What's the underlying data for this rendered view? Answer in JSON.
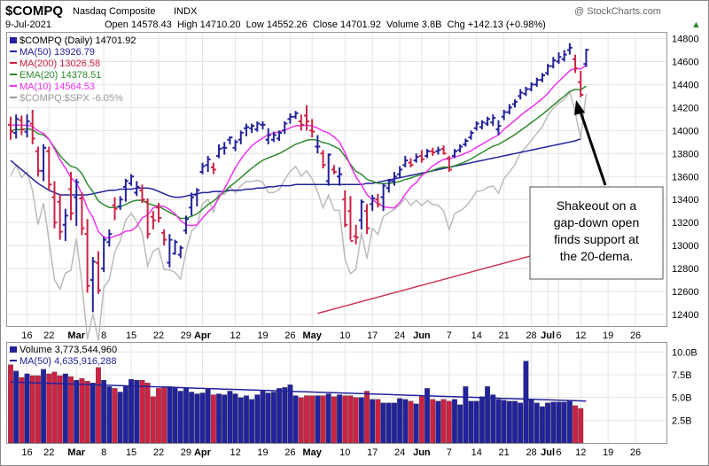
{
  "header": {
    "symbol": "$COMPQ",
    "name": "Nasdaq Composite",
    "exchange": "INDX",
    "date": "9-Jul-2021",
    "ohlc_text": "Open 14578.43  High 14710.20  Low 14552.26  Close 14701.92  Volume 3.8B  Chg +142.13 (+0.98%)",
    "watermark": "@ StockCharts.com",
    "change_arrow": "▲"
  },
  "legend_price": [
    {
      "text": "$COMPQ (Daily) 14701.92",
      "color": "#000000"
    },
    {
      "text": "MA(50) 13926.79",
      "color": "#22229c"
    },
    {
      "text": "MA(200) 13026.58",
      "color": "#cc2244"
    },
    {
      "text": "EMA(20) 14378.51",
      "color": "#2e8a2e"
    },
    {
      "text": "MA(10) 14564.53",
      "color": "#ee33ee"
    },
    {
      "text": "$COMPQ:$SPX -6.05%",
      "color": "#999999"
    }
  ],
  "legend_volume": [
    {
      "text": "Volume 3,773,544,960",
      "color": "#000000"
    },
    {
      "text": "MA(50) 4,635,916,288",
      "color": "#22229c"
    }
  ],
  "annotation": {
    "lines": [
      "Shakeout on a",
      "gap-down open",
      "finds support at",
      "the 20-dema."
    ]
  },
  "colors": {
    "up": "#22229c",
    "down": "#cc2244",
    "ma50": "#22229c",
    "ma200": "#cc3355",
    "ema20": "#2e8a2e",
    "ma10": "#ee33ee",
    "rel": "#bbbbbb",
    "grid": "#e4e4e4"
  },
  "chart_data": {
    "type": "line",
    "price_axis": {
      "min": 12300,
      "max": 14850,
      "ticks": [
        12400,
        12600,
        12800,
        13000,
        13200,
        13400,
        13600,
        13800,
        14000,
        14200,
        14400,
        14600,
        14800
      ]
    },
    "volume_axis": {
      "min": 0,
      "max": 11000000000,
      "ticks": [
        2500000000,
        5000000000,
        7500000000,
        10000000000
      ],
      "tick_labels": [
        "2.5B",
        "5.0B",
        "7.5B",
        "10.0B"
      ]
    },
    "x_labels": [
      {
        "i": 3,
        "label": "16",
        "bold": false
      },
      {
        "i": 7,
        "label": "22",
        "bold": false
      },
      {
        "i": 12,
        "label": "Mar",
        "bold": true
      },
      {
        "i": 17,
        "label": "8",
        "bold": false
      },
      {
        "i": 22,
        "label": "15",
        "bold": false
      },
      {
        "i": 27,
        "label": "22",
        "bold": false
      },
      {
        "i": 32,
        "label": "29",
        "bold": false
      },
      {
        "i": 35,
        "label": "Apr",
        "bold": true
      },
      {
        "i": 41,
        "label": "12",
        "bold": false
      },
      {
        "i": 46,
        "label": "19",
        "bold": false
      },
      {
        "i": 51,
        "label": "26",
        "bold": false
      },
      {
        "i": 55,
        "label": "May",
        "bold": true
      },
      {
        "i": 61,
        "label": "10",
        "bold": false
      },
      {
        "i": 66,
        "label": "17",
        "bold": false
      },
      {
        "i": 71,
        "label": "24",
        "bold": false
      },
      {
        "i": 75,
        "label": "Jun",
        "bold": true
      },
      {
        "i": 80,
        "label": "7",
        "bold": false
      },
      {
        "i": 85,
        "label": "14",
        "bold": false
      },
      {
        "i": 90,
        "label": "21",
        "bold": false
      },
      {
        "i": 95,
        "label": "28",
        "bold": false
      },
      {
        "i": 98,
        "label": "Jul",
        "bold": true
      },
      {
        "i": 100,
        "label": "6",
        "bold": false
      },
      {
        "i": 104,
        "label": "12",
        "bold": false
      },
      {
        "i": 109,
        "label": "19",
        "bold": false
      },
      {
        "i": 114,
        "label": "26",
        "bold": false
      }
    ],
    "axis_end_index": 119,
    "bars": [
      [
        14050,
        14120,
        13920,
        13990
      ],
      [
        13980,
        14140,
        13930,
        14100
      ],
      [
        14090,
        14130,
        13960,
        14010
      ],
      [
        13990,
        14140,
        13940,
        14080
      ],
      [
        14060,
        14180,
        13880,
        13930
      ],
      [
        13820,
        13860,
        13600,
        13650
      ],
      [
        13650,
        13880,
        13560,
        13850
      ],
      [
        13820,
        13860,
        13480,
        13530
      ],
      [
        13420,
        13560,
        13150,
        13200
      ],
      [
        13380,
        13450,
        13050,
        13120
      ],
      [
        13180,
        13320,
        13040,
        13260
      ],
      [
        13490,
        13640,
        13220,
        13280
      ],
      [
        13420,
        13580,
        13170,
        13550
      ],
      [
        13410,
        13460,
        13090,
        13150
      ],
      [
        13100,
        13230,
        12590,
        12650
      ],
      [
        12700,
        12900,
        12420,
        12860
      ],
      [
        12850,
        12950,
        12580,
        12610
      ],
      [
        12800,
        13080,
        12770,
        13050
      ],
      [
        13030,
        13140,
        12990,
        13100
      ],
      [
        13350,
        13420,
        13220,
        13320
      ],
      [
        13340,
        13430,
        13310,
        13400
      ],
      [
        13510,
        13580,
        13380,
        13560
      ],
      [
        13540,
        13620,
        13520,
        13600
      ],
      [
        13460,
        13560,
        13430,
        13510
      ],
      [
        13480,
        13530,
        13370,
        13400
      ],
      [
        13380,
        13410,
        13060,
        13100
      ],
      [
        13250,
        13300,
        13140,
        13220
      ],
      [
        13330,
        13370,
        13200,
        13240
      ],
      [
        13110,
        13140,
        13000,
        13050
      ],
      [
        12850,
        13100,
        12810,
        13050
      ],
      [
        12930,
        13050,
        12920,
        13030
      ],
      [
        12920,
        13000,
        12890,
        12980
      ],
      [
        13130,
        13260,
        13100,
        13230
      ],
      [
        13330,
        13460,
        13260,
        13420
      ],
      [
        13440,
        13500,
        13340,
        13480
      ],
      [
        13640,
        13720,
        13620,
        13690
      ],
      [
        13700,
        13780,
        13640,
        13750
      ],
      [
        13680,
        13720,
        13620,
        13660
      ],
      [
        13780,
        13880,
        13760,
        13840
      ],
      [
        13850,
        13900,
        13790,
        13850
      ],
      [
        13920,
        13950,
        13880,
        13940
      ],
      [
        13850,
        13920,
        13820,
        13900
      ],
      [
        13920,
        14000,
        13880,
        13980
      ],
      [
        14020,
        14060,
        13950,
        14030
      ],
      [
        14020,
        14060,
        13980,
        14040
      ],
      [
        14010,
        14080,
        13990,
        14060
      ],
      [
        14050,
        14080,
        14010,
        14050
      ],
      [
        13920,
        14020,
        13880,
        13960
      ],
      [
        13920,
        13990,
        13900,
        13960
      ],
      [
        13930,
        14000,
        13910,
        13980
      ],
      [
        14000,
        14080,
        13970,
        14060
      ],
      [
        14100,
        14150,
        14060,
        14120
      ],
      [
        14120,
        14170,
        14100,
        14150
      ],
      [
        14080,
        14140,
        14000,
        14050
      ],
      [
        14130,
        14220,
        14000,
        14080
      ],
      [
        14000,
        14100,
        13940,
        13990
      ],
      [
        13860,
        13960,
        13800,
        13860
      ],
      [
        13800,
        13830,
        13670,
        13700
      ],
      [
        13560,
        13800,
        13520,
        13790
      ],
      [
        13660,
        13700,
        13620,
        13640
      ],
      [
        13600,
        13680,
        13520,
        13620
      ],
      [
        13400,
        13480,
        13160,
        13180
      ],
      [
        13300,
        13430,
        13050,
        13040
      ],
      [
        13080,
        13180,
        13010,
        13070
      ],
      [
        13220,
        13400,
        13140,
        13380
      ],
      [
        13300,
        13360,
        13100,
        13150
      ],
      [
        13360,
        13440,
        13300,
        13410
      ],
      [
        13400,
        13450,
        13330,
        13360
      ],
      [
        13420,
        13540,
        13300,
        13520
      ],
      [
        13500,
        13580,
        13460,
        13560
      ],
      [
        13560,
        13640,
        13520,
        13600
      ],
      [
        13620,
        13690,
        13590,
        13660
      ],
      [
        13700,
        13780,
        13680,
        13740
      ],
      [
        13720,
        13760,
        13680,
        13700
      ],
      [
        13740,
        13800,
        13720,
        13770
      ],
      [
        13780,
        13830,
        13720,
        13750
      ],
      [
        13780,
        13840,
        13760,
        13820
      ],
      [
        13820,
        13850,
        13780,
        13810
      ],
      [
        13820,
        13860,
        13790,
        13830
      ],
      [
        13840,
        13870,
        13790,
        13800
      ],
      [
        13760,
        13780,
        13640,
        13660
      ],
      [
        13780,
        13840,
        13760,
        13820
      ],
      [
        13830,
        13880,
        13810,
        13860
      ],
      [
        13880,
        13930,
        13860,
        13910
      ],
      [
        13940,
        14000,
        13920,
        13980
      ],
      [
        14020,
        14080,
        14000,
        14060
      ],
      [
        14030,
        14090,
        14010,
        14070
      ],
      [
        14060,
        14120,
        14040,
        14100
      ],
      [
        14070,
        14140,
        14040,
        14110
      ],
      [
        14010,
        14090,
        13960,
        14040
      ],
      [
        14120,
        14180,
        14090,
        14160
      ],
      [
        14160,
        14230,
        14140,
        14200
      ],
      [
        14230,
        14270,
        14200,
        14250
      ],
      [
        14300,
        14360,
        14270,
        14330
      ],
      [
        14320,
        14380,
        14300,
        14360
      ],
      [
        14360,
        14420,
        14340,
        14400
      ],
      [
        14400,
        14460,
        14380,
        14440
      ],
      [
        14440,
        14500,
        14420,
        14480
      ],
      [
        14500,
        14580,
        14480,
        14560
      ],
      [
        14560,
        14640,
        14540,
        14610
      ],
      [
        14600,
        14680,
        14580,
        14640
      ],
      [
        14620,
        14700,
        14600,
        14660
      ],
      [
        14700,
        14760,
        14660,
        14720
      ],
      [
        14620,
        14660,
        14500,
        14540
      ],
      [
        14420,
        14520,
        14290,
        14310
      ],
      [
        14578.43,
        14710.2,
        14552.26,
        14701.92
      ]
    ],
    "volume_billions": [
      8.6,
      7.9,
      7.2,
      7.6,
      7.4,
      7.4,
      8.1,
      7.6,
      7.8,
      7.4,
      7.6,
      7.3,
      6.9,
      7.1,
      6.8,
      6.6,
      8.3,
      6.9,
      6.2,
      6.0,
      5.6,
      6.2,
      7.0,
      6.9,
      6.9,
      6.6,
      5.1,
      6.0,
      6.2,
      6.2,
      6.1,
      5.7,
      6.1,
      5.6,
      5.4,
      5.5,
      5.9,
      5.3,
      5.4,
      5.3,
      5.7,
      5.4,
      5.0,
      5.2,
      4.8,
      5.3,
      5.7,
      5.5,
      5.6,
      6.0,
      6.1,
      6.4,
      5.2,
      5.0,
      5.2,
      5.2,
      5.2,
      5.2,
      5.4,
      5.1,
      5.3,
      5.2,
      5.2,
      5.0,
      5.0,
      5.7,
      4.8,
      4.8,
      4.4,
      4.4,
      4.4,
      4.9,
      4.8,
      4.6,
      4.3,
      5.2,
      6.0,
      4.8,
      4.6,
      4.8,
      4.6,
      4.8,
      4.2,
      6.2,
      4.6,
      4.6,
      5.1,
      6.2,
      5.3,
      4.8,
      4.7,
      4.6,
      4.6,
      4.4,
      9.0,
      4.8,
      4.4,
      4.0,
      4.4,
      4.5,
      4.5,
      4.5,
      4.6,
      4.1,
      3.8
    ],
    "ma50": [
      13740,
      13700,
      13660,
      13620,
      13580,
      13540,
      13510,
      13480,
      13460,
      13440,
      13440,
      13440,
      13440,
      13440,
      13440,
      13450,
      13460,
      13470,
      13480,
      13480,
      13490,
      13490,
      13490,
      13500,
      13500,
      13500,
      13490,
      13470,
      13450,
      13430,
      13420,
      13420,
      13430,
      13440,
      13450,
      13460,
      13460,
      13470,
      13470,
      13470,
      13480,
      13480,
      13480,
      13490,
      13490,
      13500,
      13500,
      13510,
      13510,
      13520,
      13520,
      13520,
      13530,
      13530,
      13530,
      13530,
      13530,
      13530,
      13530,
      13530,
      13530,
      13530,
      13530,
      13530,
      13530,
      13540,
      13540,
      13550,
      13560,
      13570,
      13580,
      13590,
      13600,
      13610,
      13620,
      13630,
      13640,
      13650,
      13660,
      13670,
      13680,
      13690,
      13700,
      13710,
      13720,
      13730,
      13740,
      13750,
      13760,
      13770,
      13780,
      13790,
      13800,
      13810,
      13820,
      13830,
      13840,
      13850,
      13860,
      13870,
      13880,
      13890,
      13900,
      13910,
      13926.79
    ],
    "ma200_start": {
      "i": 56,
      "value": 12410
    },
    "ma200_end": {
      "i": 104,
      "value": 13026.58
    },
    "volume_ma50_start": 6.7,
    "volume_ma50_end": 4.6
  }
}
